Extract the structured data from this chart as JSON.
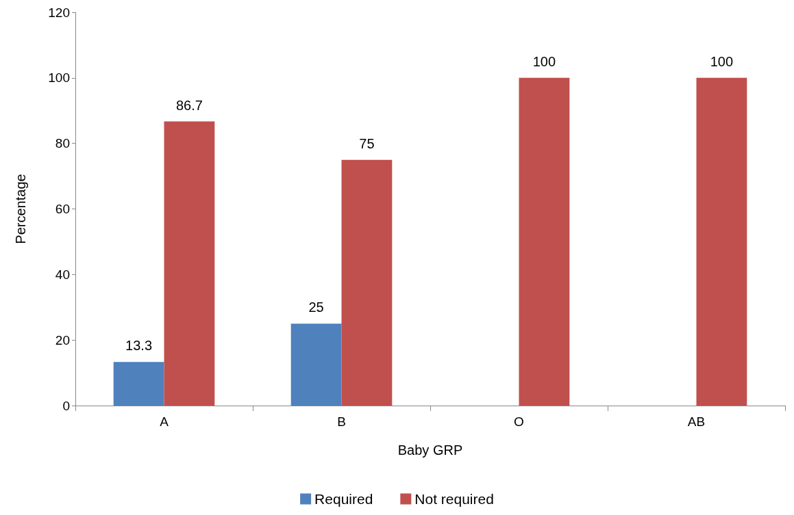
{
  "chart_data": {
    "type": "bar",
    "xlabel": "Baby GRP",
    "ylabel": "Percentage",
    "categories": [
      "A",
      "B",
      "O",
      "AB"
    ],
    "series": [
      {
        "name": "Required",
        "color": "#4f81bd",
        "values": [
          13.3,
          25,
          null,
          null
        ]
      },
      {
        "name": "Not required",
        "color": "#c0504d",
        "values": [
          86.7,
          75,
          100,
          100
        ]
      }
    ],
    "ylim": [
      0,
      120
    ],
    "yticks": [
      0,
      20,
      40,
      60,
      80,
      100,
      120
    ],
    "grid": false,
    "legend": "bottom",
    "data_labels": true
  }
}
